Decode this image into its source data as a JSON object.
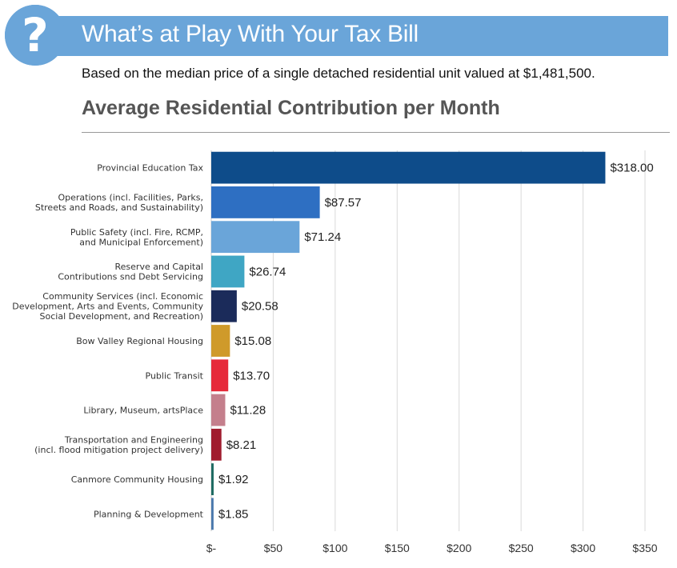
{
  "header": {
    "icon": "question-mark-icon",
    "title": "What’s at Play With Your Tax Bill",
    "subtitle": "Based on the median price of a single detached residential unit valued at $1,481,500."
  },
  "colors": {
    "banner": "#6aa5d9",
    "title_gray": "#555555"
  },
  "chart_data": {
    "type": "bar",
    "orientation": "horizontal",
    "title": "Average Residential Contribution per Month",
    "xlabel": "",
    "ylabel": "",
    "xlim": [
      0,
      350
    ],
    "grid": true,
    "categories": [
      [
        "Provincial Education Tax"
      ],
      [
        "Operations (incl. Facilities, Parks,",
        "Streets and Roads, and Sustainability)"
      ],
      [
        "Public Safety (incl. Fire, RCMP,",
        "and Municipal Enforcement)"
      ],
      [
        "Reserve and Capital",
        "Contributions snd Debt Servicing"
      ],
      [
        "Community Services (incl. Economic",
        "Development, Arts and Events, Community",
        "Social Development, and Recreation)"
      ],
      [
        "Bow Valley Regional Housing"
      ],
      [
        "Public Transit"
      ],
      [
        "Library, Museum, artsPlace"
      ],
      [
        "Transportation and Engineering",
        "(incl. flood mitigation project delivery)"
      ],
      [
        "Canmore Community Housing"
      ],
      [
        "Planning & Development"
      ]
    ],
    "values": [
      318.0,
      87.57,
      71.24,
      26.74,
      20.58,
      15.08,
      13.7,
      11.28,
      8.21,
      1.92,
      1.85
    ],
    "value_labels": [
      "$318.00",
      "$87.57",
      "$71.24",
      "$26.74",
      "$20.58",
      "$15.08",
      "$13.70",
      "$11.28",
      "$8.21",
      "$1.92",
      "$1.85"
    ],
    "bar_colors": [
      "#0e4c8a",
      "#2e6fc2",
      "#6aa5d9",
      "#3fa6c4",
      "#1b2b5a",
      "#cf9a2a",
      "#e62a3a",
      "#c47f8c",
      "#a01c2e",
      "#1f6b63",
      "#4a79ad"
    ],
    "x_ticks": [
      0,
      50,
      100,
      150,
      200,
      250,
      300,
      350
    ],
    "x_tick_labels": [
      "$-",
      "$50",
      "$100",
      "$150",
      "$200",
      "$250",
      "$300",
      "$350"
    ]
  }
}
